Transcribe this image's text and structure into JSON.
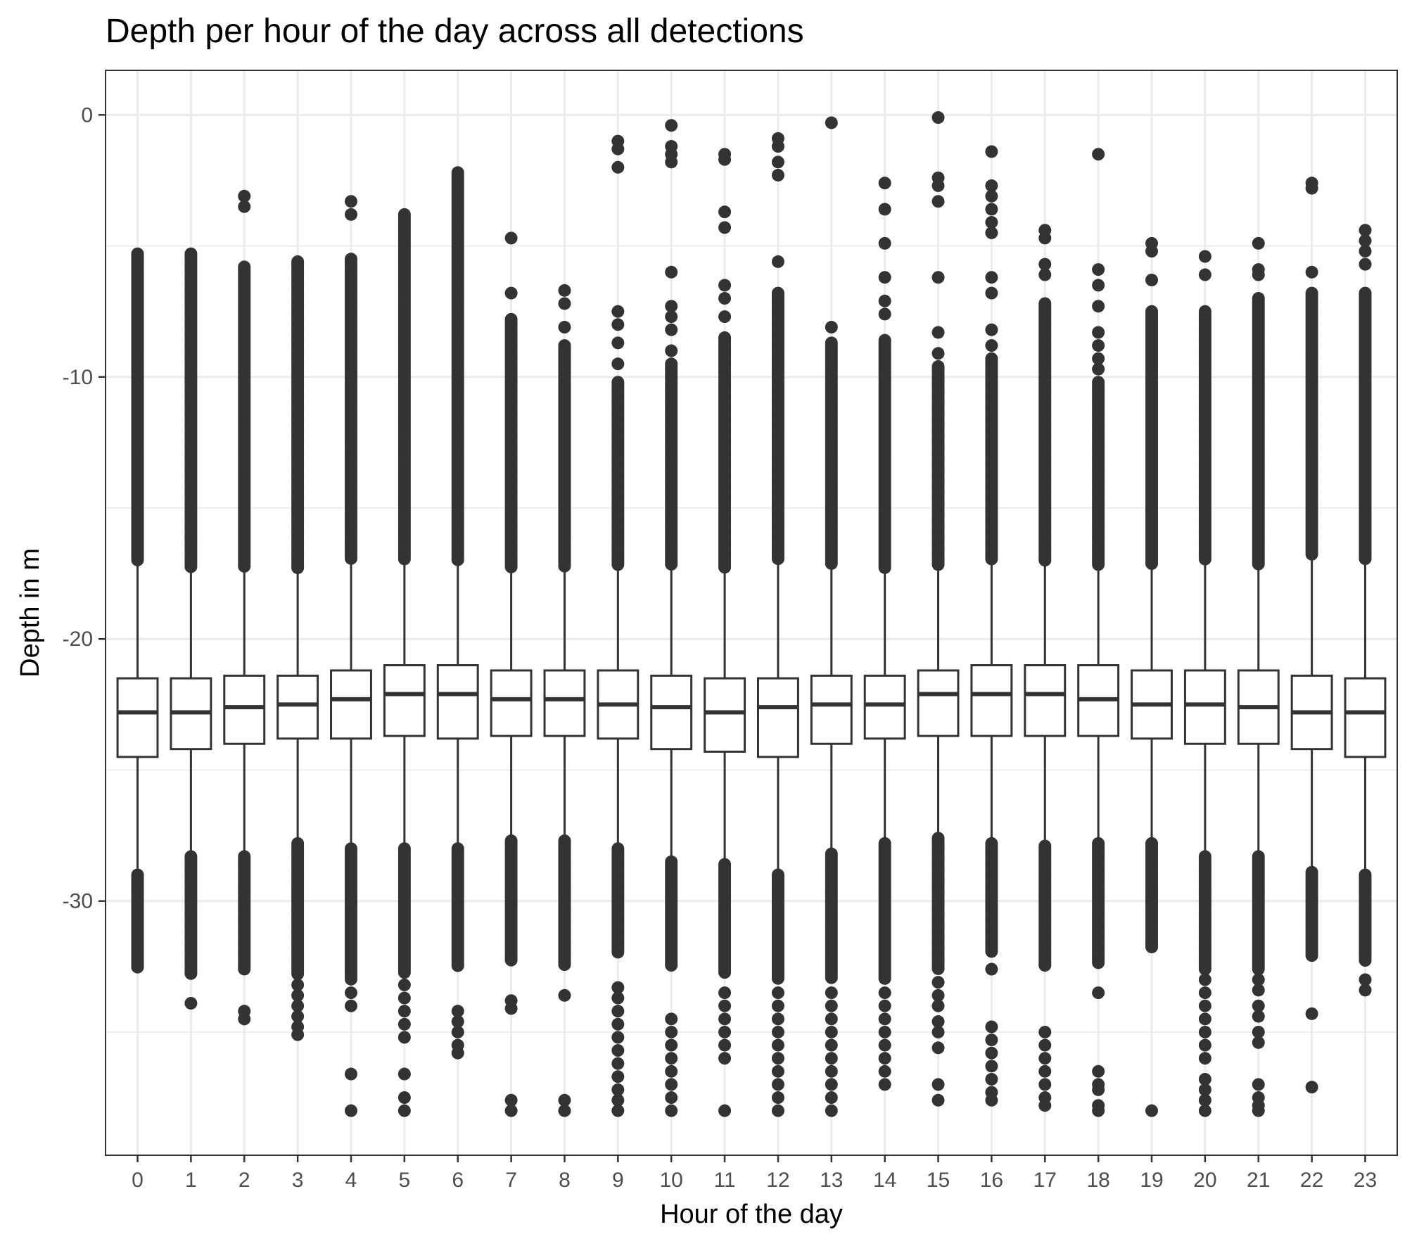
{
  "chart_data": {
    "type": "boxplot",
    "title": "Depth per hour of the day across all detections",
    "xlabel": "Hour of the day",
    "ylabel": "Depth in m",
    "ylim": [
      -39.7,
      1.7
    ],
    "y_ticks": [
      0,
      -10,
      -20,
      -30
    ],
    "grid": true,
    "legend": "none",
    "colors": {
      "box_line": "#333333",
      "box_fill": "#ffffff",
      "outlier": "#333333",
      "grid": "#ebebeb",
      "tick_text": "#4d4d4d"
    },
    "categories": [
      "0",
      "1",
      "2",
      "3",
      "4",
      "5",
      "6",
      "7",
      "8",
      "9",
      "10",
      "11",
      "12",
      "13",
      "14",
      "15",
      "16",
      "17",
      "18",
      "19",
      "20",
      "21",
      "22",
      "23"
    ],
    "boxes": [
      {
        "hour": "0",
        "q1": -24.5,
        "median": -22.8,
        "q3": -21.5,
        "whisker_low": -29.0,
        "whisker_high": -17.0,
        "outliers_high_dense": [
          -17.0,
          -5.3
        ],
        "outliers_low_dense": [
          -29.0,
          -32.6
        ],
        "outliers": []
      },
      {
        "hour": "1",
        "q1": -24.2,
        "median": -22.8,
        "q3": -21.5,
        "whisker_low": -28.3,
        "whisker_high": -17.3,
        "outliers_high_dense": [
          -17.3,
          -5.3
        ],
        "outliers_low_dense": [
          -28.3,
          -32.8
        ],
        "outliers": [
          -33.9
        ]
      },
      {
        "hour": "2",
        "q1": -24.0,
        "median": -22.6,
        "q3": -21.4,
        "whisker_low": -28.3,
        "whisker_high": -17.3,
        "outliers_high_dense": [
          -17.3,
          -5.8
        ],
        "outliers_low_dense": [
          -28.3,
          -32.6
        ],
        "outliers": [
          -3.1,
          -3.5,
          -34.2,
          -34.5
        ]
      },
      {
        "hour": "3",
        "q1": -23.8,
        "median": -22.5,
        "q3": -21.4,
        "whisker_low": -27.8,
        "whisker_high": -17.3,
        "outliers_high_dense": [
          -17.3,
          -5.6
        ],
        "outliers_low_dense": [
          -27.8,
          -32.8
        ],
        "outliers": [
          -33.2,
          -33.6,
          -34.0,
          -34.4,
          -34.8,
          -35.1
        ]
      },
      {
        "hour": "4",
        "q1": -23.8,
        "median": -22.3,
        "q3": -21.2,
        "whisker_low": -28.0,
        "whisker_high": -17.0,
        "outliers_high_dense": [
          -17.0,
          -5.5
        ],
        "outliers_low_dense": [
          -28.0,
          -33.0
        ],
        "outliers": [
          -3.3,
          -3.8,
          -33.5,
          -34.0,
          -36.6,
          -38.0
        ]
      },
      {
        "hour": "5",
        "q1": -23.7,
        "median": -22.1,
        "q3": -21.0,
        "whisker_low": -28.0,
        "whisker_high": -17.0,
        "outliers_high_dense": [
          -17.0,
          -3.8
        ],
        "outliers_low_dense": [
          -28.0,
          -32.8
        ],
        "outliers": [
          -33.2,
          -33.7,
          -34.2,
          -34.7,
          -35.2,
          -36.6,
          -37.5,
          -38.0
        ]
      },
      {
        "hour": "6",
        "q1": -23.8,
        "median": -22.1,
        "q3": -21.0,
        "whisker_low": -28.0,
        "whisker_high": -17.0,
        "outliers_high_dense": [
          -17.0,
          -2.2
        ],
        "outliers_low_dense": [
          -28.0,
          -32.5
        ],
        "outliers": [
          -34.2,
          -34.6,
          -35.0,
          -35.5,
          -35.8
        ]
      },
      {
        "hour": "7",
        "q1": -23.7,
        "median": -22.3,
        "q3": -21.2,
        "whisker_low": -27.7,
        "whisker_high": -17.3,
        "outliers_high_dense": [
          -17.3,
          -7.8
        ],
        "outliers_low_dense": [
          -27.7,
          -32.3
        ],
        "outliers": [
          -4.7,
          -6.8,
          -33.8,
          -34.1,
          -37.6,
          -38.0
        ]
      },
      {
        "hour": "8",
        "q1": -23.7,
        "median": -22.3,
        "q3": -21.2,
        "whisker_low": -27.7,
        "whisker_high": -17.3,
        "outliers_high_dense": [
          -17.3,
          -8.8
        ],
        "outliers_low_dense": [
          -27.7,
          -32.5
        ],
        "outliers": [
          -6.7,
          -7.2,
          -8.1,
          -33.6,
          -37.6,
          -38.0
        ]
      },
      {
        "hour": "9",
        "q1": -23.8,
        "median": -22.5,
        "q3": -21.2,
        "whisker_low": -28.0,
        "whisker_high": -17.2,
        "outliers_high_dense": [
          -17.2,
          -10.2
        ],
        "outliers_low_dense": [
          -28.0,
          -32.0
        ],
        "outliers": [
          -1.0,
          -1.3,
          -2.0,
          -7.5,
          -8.0,
          -8.7,
          -9.5,
          -33.3,
          -33.7,
          -34.2,
          -34.7,
          -35.2,
          -35.7,
          -36.2,
          -36.7,
          -37.2,
          -37.6,
          -38.0
        ]
      },
      {
        "hour": "10",
        "q1": -24.2,
        "median": -22.6,
        "q3": -21.4,
        "whisker_low": -28.5,
        "whisker_high": -17.2,
        "outliers_high_dense": [
          -17.2,
          -9.5
        ],
        "outliers_low_dense": [
          -28.5,
          -32.5
        ],
        "outliers": [
          -0.4,
          -1.2,
          -1.5,
          -1.8,
          -6.0,
          -7.3,
          -7.7,
          -8.2,
          -9.0,
          -34.5,
          -35.0,
          -35.5,
          -36.0,
          -36.5,
          -37.0,
          -37.5,
          -38.0
        ]
      },
      {
        "hour": "11",
        "q1": -24.3,
        "median": -22.8,
        "q3": -21.5,
        "whisker_low": -28.6,
        "whisker_high": -17.3,
        "outliers_high_dense": [
          -17.3,
          -8.5
        ],
        "outliers_low_dense": [
          -28.6,
          -32.8
        ],
        "outliers": [
          -1.5,
          -1.7,
          -3.7,
          -4.3,
          -6.5,
          -7.0,
          -7.7,
          -33.5,
          -34.0,
          -34.5,
          -35.0,
          -35.5,
          -36.0,
          -38.0
        ]
      },
      {
        "hour": "12",
        "q1": -24.5,
        "median": -22.6,
        "q3": -21.5,
        "whisker_low": -29.0,
        "whisker_high": -17.0,
        "outliers_high_dense": [
          -17.0,
          -6.8
        ],
        "outliers_low_dense": [
          -29.0,
          -33.0
        ],
        "outliers": [
          -0.9,
          -1.2,
          -1.8,
          -2.3,
          -5.6,
          -33.5,
          -34.0,
          -34.5,
          -35.0,
          -35.5,
          -36.0,
          -36.5,
          -37.0,
          -37.5,
          -38.0
        ]
      },
      {
        "hour": "13",
        "q1": -24.0,
        "median": -22.5,
        "q3": -21.4,
        "whisker_low": -28.2,
        "whisker_high": -17.2,
        "outliers_high_dense": [
          -17.2,
          -8.7
        ],
        "outliers_low_dense": [
          -28.2,
          -33.0
        ],
        "outliers": [
          -0.3,
          -8.1,
          -33.5,
          -34.0,
          -34.5,
          -35.0,
          -35.5,
          -36.0,
          -36.5,
          -37.0,
          -37.5,
          -38.0
        ]
      },
      {
        "hour": "14",
        "q1": -23.8,
        "median": -22.5,
        "q3": -21.4,
        "whisker_low": -27.8,
        "whisker_high": -17.3,
        "outliers_high_dense": [
          -17.3,
          -8.6
        ],
        "outliers_low_dense": [
          -27.8,
          -33.0
        ],
        "outliers": [
          -2.6,
          -3.6,
          -4.9,
          -6.2,
          -7.1,
          -7.6,
          -33.5,
          -34.0,
          -34.5,
          -35.0,
          -35.5,
          -36.0,
          -36.5,
          -37.0
        ]
      },
      {
        "hour": "15",
        "q1": -23.7,
        "median": -22.1,
        "q3": -21.2,
        "whisker_low": -27.6,
        "whisker_high": -17.2,
        "outliers_high_dense": [
          -17.2,
          -9.6
        ],
        "outliers_low_dense": [
          -27.6,
          -32.6
        ],
        "outliers": [
          -0.1,
          -2.4,
          -2.7,
          -3.3,
          -6.2,
          -8.3,
          -9.1,
          -33.1,
          -33.6,
          -34.0,
          -34.6,
          -35.0,
          -35.6,
          -37.0,
          -37.6
        ]
      },
      {
        "hour": "16",
        "q1": -23.7,
        "median": -22.1,
        "q3": -21.0,
        "whisker_low": -27.8,
        "whisker_high": -17.0,
        "outliers_high_dense": [
          -17.0,
          -9.3
        ],
        "outliers_low_dense": [
          -27.8,
          -32.0
        ],
        "outliers": [
          -1.4,
          -2.7,
          -3.1,
          -3.6,
          -4.1,
          -4.5,
          -6.2,
          -6.8,
          -8.2,
          -8.8,
          -32.6,
          -34.8,
          -35.3,
          -35.8,
          -36.3,
          -36.8,
          -37.3,
          -37.6
        ]
      },
      {
        "hour": "17",
        "q1": -23.7,
        "median": -22.1,
        "q3": -21.0,
        "whisker_low": -27.9,
        "whisker_high": -17.0,
        "outliers_high_dense": [
          -17.0,
          -7.2
        ],
        "outliers_low_dense": [
          -27.9,
          -32.5
        ],
        "outliers": [
          -4.4,
          -4.7,
          -5.7,
          -6.1,
          -35.0,
          -35.5,
          -36.0,
          -36.5,
          -37.0,
          -37.5,
          -37.8
        ]
      },
      {
        "hour": "18",
        "q1": -23.7,
        "median": -22.3,
        "q3": -21.0,
        "whisker_low": -27.8,
        "whisker_high": -17.2,
        "outliers_high_dense": [
          -17.2,
          -10.2
        ],
        "outliers_low_dense": [
          -27.8,
          -32.4
        ],
        "outliers": [
          -1.5,
          -5.9,
          -6.5,
          -7.3,
          -8.3,
          -8.8,
          -9.3,
          -9.7,
          -33.5,
          -36.5,
          -37.0,
          -37.2,
          -37.8,
          -38.0
        ]
      },
      {
        "hour": "19",
        "q1": -23.8,
        "median": -22.5,
        "q3": -21.2,
        "whisker_low": -27.8,
        "whisker_high": -17.2,
        "outliers_high_dense": [
          -17.2,
          -7.5
        ],
        "outliers_low_dense": [
          -27.8,
          -31.8
        ],
        "outliers": [
          -4.9,
          -5.2,
          -6.3,
          -38.0
        ]
      },
      {
        "hour": "20",
        "q1": -24.0,
        "median": -22.5,
        "q3": -21.2,
        "whisker_low": -28.3,
        "whisker_high": -17.0,
        "outliers_high_dense": [
          -17.0,
          -7.5
        ],
        "outliers_low_dense": [
          -28.3,
          -32.6
        ],
        "outliers": [
          -5.4,
          -6.1,
          -33.0,
          -33.5,
          -34.0,
          -34.5,
          -35.0,
          -35.5,
          -36.0,
          -36.8,
          -37.2,
          -37.6,
          -38.0
        ]
      },
      {
        "hour": "21",
        "q1": -24.0,
        "median": -22.6,
        "q3": -21.2,
        "whisker_low": -28.3,
        "whisker_high": -17.2,
        "outliers_high_dense": [
          -17.2,
          -7.0
        ],
        "outliers_low_dense": [
          -28.3,
          -32.6
        ],
        "outliers": [
          -4.9,
          -5.9,
          -6.1,
          -33.0,
          -33.4,
          -34.0,
          -34.4,
          -35.0,
          -35.4,
          -37.0,
          -37.5,
          -37.8,
          -38.0
        ]
      },
      {
        "hour": "22",
        "q1": -24.2,
        "median": -22.8,
        "q3": -21.4,
        "whisker_low": -28.9,
        "whisker_high": -16.8,
        "outliers_high_dense": [
          -16.8,
          -6.8
        ],
        "outliers_low_dense": [
          -28.9,
          -32.1
        ],
        "outliers": [
          -2.6,
          -2.8,
          -6.0,
          -34.3,
          -37.1
        ]
      },
      {
        "hour": "23",
        "q1": -24.5,
        "median": -22.8,
        "q3": -21.5,
        "whisker_low": -29.0,
        "whisker_high": -17.0,
        "outliers_high_dense": [
          -17.0,
          -6.8
        ],
        "outliers_low_dense": [
          -29.0,
          -32.3
        ],
        "outliers": [
          -4.4,
          -4.8,
          -5.2,
          -5.7,
          -33.0,
          -33.4
        ]
      }
    ]
  }
}
